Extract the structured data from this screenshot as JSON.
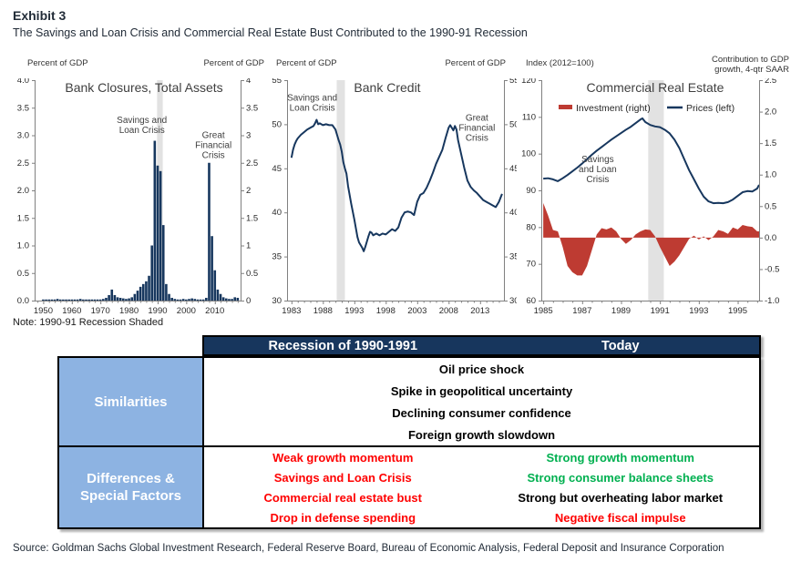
{
  "header": {
    "exhibit": "Exhibit 3",
    "subtitle": "The Savings and Loan Crisis and Commercial Real Estate Bust Contributed to the 1990-91 Recession"
  },
  "note": "Note: 1990-91 Recession Shaded",
  "source": "Source: Goldman Sachs Global Investment Research, Federal Reserve Board, Bureau of Economic Analysis, Federal Deposit and Insurance Corporation",
  "colors": {
    "chart_navy": "#17375E",
    "chart_red": "#BE3B32",
    "recession_band": "#E2E2E2",
    "axis_line": "#808080",
    "tick_text": "#2b2b2b",
    "title_text": "#3f3f3f",
    "table_header_bg": "#17365D",
    "table_blue_bg": "#8DB3E2",
    "text_red": "#FF0000",
    "text_green": "#00B050",
    "text_black": "#000000"
  },
  "chart_data": [
    {
      "type": "bar",
      "title": "Bank Closures, Total Assets",
      "left_axis_title": "Percent of GDP",
      "right_axis_title": "Percent of GDP",
      "ylim": [
        0,
        4
      ],
      "yticks_left": [
        [
          4,
          "4.0"
        ],
        [
          3.5,
          "3.5"
        ],
        [
          3,
          "3.0"
        ],
        [
          2.5,
          "2.5"
        ],
        [
          2,
          "2.0"
        ],
        [
          1.5,
          "1.5"
        ],
        [
          1,
          "1.0"
        ],
        [
          0.5,
          "0.5"
        ],
        [
          0,
          "0.0"
        ]
      ],
      "yticks_right": [
        [
          4,
          "4"
        ],
        [
          3.5,
          "3.5"
        ],
        [
          3,
          "3"
        ],
        [
          2.5,
          "2.5"
        ],
        [
          2,
          "2"
        ],
        [
          1.5,
          "1.5"
        ],
        [
          1,
          "1"
        ],
        [
          0.5,
          "0.5"
        ],
        [
          0,
          "0"
        ]
      ],
      "xticks": [
        1950,
        1960,
        1970,
        1980,
        1990,
        2000,
        2010
      ],
      "recession_band": [
        1989.8,
        1991.8
      ],
      "annotations": [
        {
          "lines": [
            "Savings and",
            "Loan Crisis"
          ],
          "x": 1984.5,
          "y": 3.22
        },
        {
          "lines": [
            "Great",
            "Financial",
            "Crisis"
          ],
          "x": 2009.5,
          "y": 2.95
        }
      ],
      "bars": {
        "years": [
          1950,
          1951,
          1952,
          1953,
          1954,
          1955,
          1956,
          1957,
          1958,
          1959,
          1960,
          1961,
          1962,
          1963,
          1964,
          1965,
          1966,
          1967,
          1968,
          1969,
          1970,
          1971,
          1972,
          1973,
          1974,
          1975,
          1976,
          1977,
          1978,
          1979,
          1980,
          1981,
          1982,
          1983,
          1984,
          1985,
          1986,
          1987,
          1988,
          1989,
          1990,
          1991,
          1992,
          1993,
          1994,
          1995,
          1996,
          1997,
          1998,
          1999,
          2000,
          2001,
          2002,
          2003,
          2004,
          2005,
          2006,
          2007,
          2008,
          2009,
          2010,
          2011,
          2012,
          2013,
          2014,
          2015,
          2016,
          2017,
          2018
        ],
        "values": [
          0.02,
          0.02,
          0.02,
          0.02,
          0.02,
          0.03,
          0.02,
          0.02,
          0.02,
          0.02,
          0.02,
          0.02,
          0.02,
          0.03,
          0.02,
          0.02,
          0.02,
          0.02,
          0.02,
          0.02,
          0.02,
          0.03,
          0.05,
          0.1,
          0.2,
          0.1,
          0.06,
          0.05,
          0.04,
          0.03,
          0.04,
          0.06,
          0.12,
          0.18,
          0.25,
          0.3,
          0.35,
          0.45,
          1.0,
          2.9,
          2.45,
          2.35,
          1.37,
          0.3,
          0.12,
          0.05,
          0.03,
          0.02,
          0.02,
          0.03,
          0.02,
          0.03,
          0.04,
          0.03,
          0.02,
          0.02,
          0.02,
          0.05,
          2.5,
          1.17,
          0.55,
          0.2,
          0.12,
          0.06,
          0.04,
          0.03,
          0.03,
          0.06,
          0.05
        ]
      }
    },
    {
      "type": "line",
      "title": "Bank Credit",
      "left_axis_title": "Percent of GDP",
      "right_axis_title": "Percent of GDP",
      "ylim": [
        30,
        55
      ],
      "yticks_left": [
        [
          55,
          "55"
        ],
        [
          50,
          "50"
        ],
        [
          45,
          "45"
        ],
        [
          40,
          "40"
        ],
        [
          35,
          "35"
        ],
        [
          30,
          "30"
        ]
      ],
      "yticks_right": [
        [
          55,
          "55"
        ],
        [
          50,
          "50"
        ],
        [
          45,
          "45"
        ],
        [
          40,
          "40"
        ],
        [
          35,
          "35"
        ],
        [
          30,
          "30"
        ]
      ],
      "xticks": [
        1983,
        1988,
        1993,
        1998,
        2003,
        2008,
        2013
      ],
      "recession_band": [
        1990.2,
        1991.5
      ],
      "annotations": [
        {
          "lines": [
            "Savings and",
            "Loan Crisis"
          ],
          "x": 1986.3,
          "y": 52.7
        },
        {
          "lines": [
            "Great",
            "Financial",
            "Crisis"
          ],
          "x": 2012.5,
          "y": 50.4
        }
      ],
      "line": [
        [
          1983,
          46.2
        ],
        [
          1983.25,
          47.1
        ],
        [
          1983.5,
          47.7
        ],
        [
          1983.75,
          48.1
        ],
        [
          1984,
          48.4
        ],
        [
          1984.5,
          48.8
        ],
        [
          1985,
          49.1
        ],
        [
          1985.5,
          49.4
        ],
        [
          1986,
          49.6
        ],
        [
          1986.5,
          49.8
        ],
        [
          1986.75,
          50.1
        ],
        [
          1987,
          50.5
        ],
        [
          1987.25,
          50.0
        ],
        [
          1987.5,
          50.1
        ],
        [
          1988,
          49.9
        ],
        [
          1988.5,
          50.0
        ],
        [
          1989,
          49.9
        ],
        [
          1989.5,
          49.9
        ],
        [
          1990,
          49.4
        ],
        [
          1990.25,
          48.8
        ],
        [
          1990.5,
          48.2
        ],
        [
          1990.75,
          47.7
        ],
        [
          1991,
          46.9
        ],
        [
          1991.25,
          45.7
        ],
        [
          1991.5,
          45.0
        ],
        [
          1991.75,
          44.4
        ],
        [
          1992,
          43.0
        ],
        [
          1992.5,
          41.0
        ],
        [
          1993,
          39.2
        ],
        [
          1993.25,
          38.2
        ],
        [
          1993.5,
          37.2
        ],
        [
          1993.75,
          36.6
        ],
        [
          1994,
          36.3
        ],
        [
          1994.25,
          36.0
        ],
        [
          1994.5,
          35.6
        ],
        [
          1994.75,
          36.1
        ],
        [
          1995,
          36.7
        ],
        [
          1995.25,
          37.3
        ],
        [
          1995.5,
          37.8
        ],
        [
          1995.75,
          37.7
        ],
        [
          1996,
          37.4
        ],
        [
          1996.5,
          37.6
        ],
        [
          1997,
          37.4
        ],
        [
          1997.5,
          37.6
        ],
        [
          1998,
          37.5
        ],
        [
          1998.5,
          37.8
        ],
        [
          1999,
          38.1
        ],
        [
          1999.5,
          37.9
        ],
        [
          2000,
          38.3
        ],
        [
          2000.5,
          39.4
        ],
        [
          2001,
          40.0
        ],
        [
          2001.5,
          40.1
        ],
        [
          2002,
          40.0
        ],
        [
          2002.5,
          39.7
        ],
        [
          2003,
          41.2
        ],
        [
          2003.5,
          42.0
        ],
        [
          2004,
          42.2
        ],
        [
          2004.5,
          42.8
        ],
        [
          2005,
          43.6
        ],
        [
          2005.5,
          44.5
        ],
        [
          2006,
          45.5
        ],
        [
          2006.5,
          46.3
        ],
        [
          2007,
          47.1
        ],
        [
          2007.5,
          48.4
        ],
        [
          2008,
          49.6
        ],
        [
          2008.25,
          49.9
        ],
        [
          2008.5,
          49.6
        ],
        [
          2008.75,
          49.3
        ],
        [
          2009,
          49.8
        ],
        [
          2009.25,
          49.4
        ],
        [
          2009.5,
          48.2
        ],
        [
          2010,
          46.6
        ],
        [
          2010.5,
          45.0
        ],
        [
          2011,
          43.6
        ],
        [
          2011.5,
          42.9
        ],
        [
          2012,
          42.5
        ],
        [
          2012.5,
          42.2
        ],
        [
          2013,
          41.8
        ],
        [
          2013.5,
          41.4
        ],
        [
          2014,
          41.2
        ],
        [
          2014.5,
          41.0
        ],
        [
          2015,
          40.8
        ],
        [
          2015.5,
          40.6
        ],
        [
          2016,
          41.2
        ],
        [
          2016.5,
          42.1
        ]
      ]
    },
    {
      "type": "combo",
      "title": "Commercial Real Estate",
      "left_axis_title": "Index (2012=100)",
      "right_axis_title_lines": [
        "Contribution to GDP",
        "growth, 4-qtr SAAR"
      ],
      "ylim": [
        60,
        120
      ],
      "ylim_right": [
        -1,
        2.5
      ],
      "yticks_left": [
        [
          120,
          "120"
        ],
        [
          110,
          "110"
        ],
        [
          100,
          "100"
        ],
        [
          90,
          "90"
        ],
        [
          80,
          "80"
        ],
        [
          70,
          "70"
        ],
        [
          60,
          "60"
        ]
      ],
      "yticks_right": [
        [
          2.5,
          "2.5"
        ],
        [
          2,
          "2.0"
        ],
        [
          1.5,
          "1.5"
        ],
        [
          1,
          "1.0"
        ],
        [
          0.5,
          "0.5"
        ],
        [
          0,
          "0.0"
        ],
        [
          -0.5,
          "-0.5"
        ],
        [
          -1,
          "-1.0"
        ]
      ],
      "xticks": [
        1985,
        1987,
        1989,
        1991,
        1993,
        1995
      ],
      "recession_band": [
        1990.4,
        1991.2
      ],
      "annotations": [
        {
          "lines": [
            "Savings",
            "and Loan",
            "Crisis"
          ],
          "x": 1987.8,
          "y": 97.7
        }
      ],
      "legend": [
        {
          "label": "Investment (right)",
          "swatch": "red-bar"
        },
        {
          "label": "Prices (left)",
          "swatch": "navy-line"
        }
      ],
      "prices": [
        [
          1985,
          93.2
        ],
        [
          1985.25,
          93.3
        ],
        [
          1985.5,
          93.0
        ],
        [
          1985.75,
          92.5
        ],
        [
          1986,
          93.3
        ],
        [
          1986.25,
          94.2
        ],
        [
          1986.5,
          95.2
        ],
        [
          1986.75,
          96.2
        ],
        [
          1987,
          97.3
        ],
        [
          1987.25,
          98.5
        ],
        [
          1987.5,
          99.7
        ],
        [
          1987.75,
          100.8
        ],
        [
          1988,
          101.8
        ],
        [
          1988.25,
          102.8
        ],
        [
          1988.5,
          103.8
        ],
        [
          1988.75,
          104.7
        ],
        [
          1989,
          105.6
        ],
        [
          1989.25,
          106.5
        ],
        [
          1989.5,
          107.3
        ],
        [
          1989.75,
          108.3
        ],
        [
          1990,
          109.3
        ],
        [
          1990.1,
          109.6
        ],
        [
          1990.25,
          108.6
        ],
        [
          1990.5,
          107.8
        ],
        [
          1990.75,
          107.4
        ],
        [
          1991,
          107.2
        ],
        [
          1991.25,
          106.5
        ],
        [
          1991.5,
          105.5
        ],
        [
          1991.75,
          103.8
        ],
        [
          1992,
          101.5
        ],
        [
          1992.25,
          98.5
        ],
        [
          1992.5,
          95.5
        ],
        [
          1992.75,
          93.0
        ],
        [
          1993,
          90.5
        ],
        [
          1993.25,
          88.3
        ],
        [
          1993.5,
          87.0
        ],
        [
          1993.75,
          86.5
        ],
        [
          1994,
          86.6
        ],
        [
          1994.25,
          86.5
        ],
        [
          1994.5,
          86.8
        ],
        [
          1994.75,
          87.5
        ],
        [
          1995,
          88.5
        ],
        [
          1995.25,
          89.5
        ],
        [
          1995.5,
          89.8
        ],
        [
          1995.75,
          89.7
        ],
        [
          1996,
          90.5
        ],
        [
          1996.1,
          91.5
        ]
      ],
      "investment": [
        [
          1985,
          0.55
        ],
        [
          1985.25,
          0.35
        ],
        [
          1985.5,
          0.12
        ],
        [
          1985.75,
          0.1
        ],
        [
          1986,
          -0.15
        ],
        [
          1986.25,
          -0.45
        ],
        [
          1986.5,
          -0.55
        ],
        [
          1986.75,
          -0.6
        ],
        [
          1987,
          -0.6
        ],
        [
          1987.25,
          -0.45
        ],
        [
          1987.5,
          -0.2
        ],
        [
          1987.75,
          0.05
        ],
        [
          1988,
          0.15
        ],
        [
          1988.25,
          0.13
        ],
        [
          1988.5,
          0.16
        ],
        [
          1988.75,
          0.1
        ],
        [
          1989,
          -0.02
        ],
        [
          1989.25,
          -0.1
        ],
        [
          1989.5,
          -0.04
        ],
        [
          1989.75,
          0.05
        ],
        [
          1990,
          0.1
        ],
        [
          1990.25,
          0.13
        ],
        [
          1990.5,
          0.12
        ],
        [
          1990.75,
          0.02
        ],
        [
          1991,
          -0.15
        ],
        [
          1991.25,
          -0.3
        ],
        [
          1991.5,
          -0.45
        ],
        [
          1991.75,
          -0.38
        ],
        [
          1992,
          -0.28
        ],
        [
          1992.25,
          -0.15
        ],
        [
          1992.5,
          -0.02
        ],
        [
          1992.75,
          0.03
        ],
        [
          1993,
          -0.03
        ],
        [
          1993.25,
          0.02
        ],
        [
          1993.5,
          -0.04
        ],
        [
          1993.75,
          0.02
        ],
        [
          1994,
          0.12
        ],
        [
          1994.25,
          0.1
        ],
        [
          1994.5,
          0.06
        ],
        [
          1994.75,
          0.16
        ],
        [
          1995,
          0.13
        ],
        [
          1995.25,
          0.2
        ],
        [
          1995.5,
          0.18
        ],
        [
          1995.75,
          0.17
        ],
        [
          1996,
          0.1
        ],
        [
          1996.1,
          0.1
        ]
      ]
    }
  ],
  "table": {
    "col_headers": [
      "Recession of 1990-1991",
      "Today"
    ],
    "row_headers": [
      "Similarities",
      "Differences & Special Factors"
    ],
    "similarities": [
      "Oil price shock",
      "Spike in geopolitical uncertainty",
      "Declining consumer confidence",
      "Foreign growth slowdown"
    ],
    "differences": [
      {
        "recession": "Weak growth momentum",
        "recession_color": "red",
        "today": "Strong growth momentum",
        "today_color": "green"
      },
      {
        "recession": "Savings and Loan Crisis",
        "recession_color": "red",
        "today": "Strong consumer balance sheets",
        "today_color": "green"
      },
      {
        "recession": "Commercial real estate bust",
        "recession_color": "red",
        "today": "Strong but overheating labor market",
        "today_color": "black"
      },
      {
        "recession": "Drop in defense spending",
        "recession_color": "red",
        "today": "Negative fiscal impulse",
        "today_color": "red"
      }
    ]
  }
}
